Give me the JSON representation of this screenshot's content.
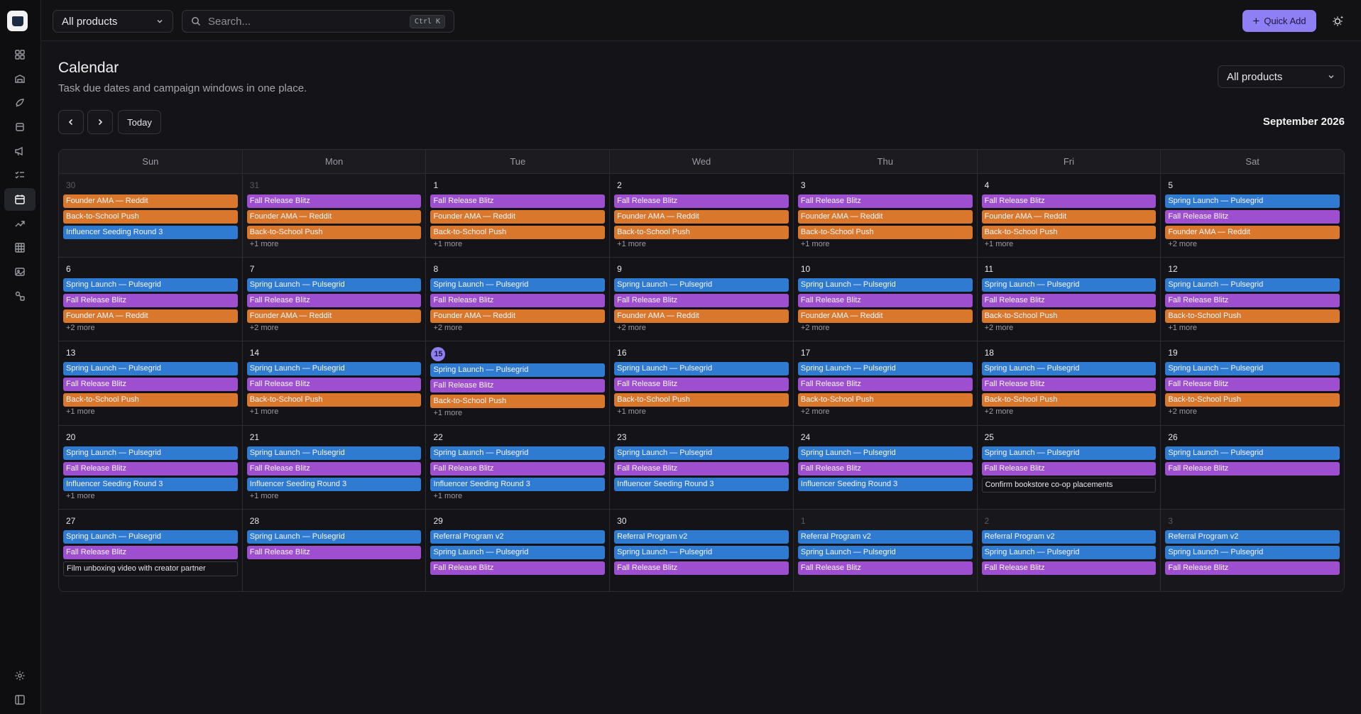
{
  "app": {
    "colors": {
      "accent": "#8f7ff5",
      "orange": "#d9782d",
      "purple": "#9d4fcf",
      "blue": "#2f7bd1"
    }
  },
  "sidebar": {
    "items": [
      {
        "icon": "dashboard-icon"
      },
      {
        "icon": "inventory-icon"
      },
      {
        "icon": "campaign-icon"
      },
      {
        "icon": "package-icon"
      },
      {
        "icon": "megaphone-icon"
      },
      {
        "icon": "checklist-icon"
      },
      {
        "icon": "calendar-icon",
        "active": true
      },
      {
        "icon": "trending-icon"
      },
      {
        "icon": "grid-icon"
      },
      {
        "icon": "image-icon"
      },
      {
        "icon": "shapes-icon"
      }
    ],
    "bottom": [
      {
        "icon": "gear-icon"
      },
      {
        "icon": "sidebar-toggle-icon"
      }
    ]
  },
  "topbar": {
    "product_select": "All products",
    "search_placeholder": "Search...",
    "search_shortcut": "Ctrl K",
    "quick_add_label": "Quick Add"
  },
  "page": {
    "title": "Calendar",
    "subtitle": "Task due dates and campaign windows in one place.",
    "product_filter": "All products",
    "today_label": "Today",
    "month_label": "September 2026"
  },
  "calendar": {
    "weekdays": [
      "Sun",
      "Mon",
      "Tue",
      "Wed",
      "Thu",
      "Fri",
      "Sat"
    ],
    "weeks": [
      [
        {
          "day": "30",
          "other": true,
          "events": [
            {
              "t": "Founder AMA — Reddit",
              "c": "orange"
            },
            {
              "t": "Back-to-School Push",
              "c": "orange"
            },
            {
              "t": "Influencer Seeding Round 3",
              "c": "blue"
            }
          ],
          "more": ""
        },
        {
          "day": "31",
          "other": true,
          "events": [
            {
              "t": "Fall Release Blitz",
              "c": "purple"
            },
            {
              "t": "Founder AMA — Reddit",
              "c": "orange"
            },
            {
              "t": "Back-to-School Push",
              "c": "orange"
            }
          ],
          "more": "+1 more"
        },
        {
          "day": "1",
          "events": [
            {
              "t": "Fall Release Blitz",
              "c": "purple"
            },
            {
              "t": "Founder AMA — Reddit",
              "c": "orange"
            },
            {
              "t": "Back-to-School Push",
              "c": "orange"
            }
          ],
          "more": "+1 more"
        },
        {
          "day": "2",
          "events": [
            {
              "t": "Fall Release Blitz",
              "c": "purple"
            },
            {
              "t": "Founder AMA — Reddit",
              "c": "orange"
            },
            {
              "t": "Back-to-School Push",
              "c": "orange"
            }
          ],
          "more": "+1 more"
        },
        {
          "day": "3",
          "events": [
            {
              "t": "Fall Release Blitz",
              "c": "purple"
            },
            {
              "t": "Founder AMA — Reddit",
              "c": "orange"
            },
            {
              "t": "Back-to-School Push",
              "c": "orange"
            }
          ],
          "more": "+1 more"
        },
        {
          "day": "4",
          "events": [
            {
              "t": "Fall Release Blitz",
              "c": "purple"
            },
            {
              "t": "Founder AMA — Reddit",
              "c": "orange"
            },
            {
              "t": "Back-to-School Push",
              "c": "orange"
            }
          ],
          "more": "+1 more"
        },
        {
          "day": "5",
          "events": [
            {
              "t": "Spring Launch — Pulsegrid",
              "c": "blue"
            },
            {
              "t": "Fall Release Blitz",
              "c": "purple"
            },
            {
              "t": "Founder AMA — Reddit",
              "c": "orange"
            }
          ],
          "more": "+2 more"
        }
      ],
      [
        {
          "day": "6",
          "events": [
            {
              "t": "Spring Launch — Pulsegrid",
              "c": "blue"
            },
            {
              "t": "Fall Release Blitz",
              "c": "purple"
            },
            {
              "t": "Founder AMA — Reddit",
              "c": "orange"
            }
          ],
          "more": "+2 more"
        },
        {
          "day": "7",
          "events": [
            {
              "t": "Spring Launch — Pulsegrid",
              "c": "blue"
            },
            {
              "t": "Fall Release Blitz",
              "c": "purple"
            },
            {
              "t": "Founder AMA — Reddit",
              "c": "orange"
            }
          ],
          "more": "+2 more"
        },
        {
          "day": "8",
          "events": [
            {
              "t": "Spring Launch — Pulsegrid",
              "c": "blue"
            },
            {
              "t": "Fall Release Blitz",
              "c": "purple"
            },
            {
              "t": "Founder AMA — Reddit",
              "c": "orange"
            }
          ],
          "more": "+2 more"
        },
        {
          "day": "9",
          "events": [
            {
              "t": "Spring Launch — Pulsegrid",
              "c": "blue"
            },
            {
              "t": "Fall Release Blitz",
              "c": "purple"
            },
            {
              "t": "Founder AMA — Reddit",
              "c": "orange"
            }
          ],
          "more": "+2 more"
        },
        {
          "day": "10",
          "events": [
            {
              "t": "Spring Launch — Pulsegrid",
              "c": "blue"
            },
            {
              "t": "Fall Release Blitz",
              "c": "purple"
            },
            {
              "t": "Founder AMA — Reddit",
              "c": "orange"
            }
          ],
          "more": "+2 more"
        },
        {
          "day": "11",
          "events": [
            {
              "t": "Spring Launch — Pulsegrid",
              "c": "blue"
            },
            {
              "t": "Fall Release Blitz",
              "c": "purple"
            },
            {
              "t": "Back-to-School Push",
              "c": "orange"
            }
          ],
          "more": "+2 more"
        },
        {
          "day": "12",
          "events": [
            {
              "t": "Spring Launch — Pulsegrid",
              "c": "blue"
            },
            {
              "t": "Fall Release Blitz",
              "c": "purple"
            },
            {
              "t": "Back-to-School Push",
              "c": "orange"
            }
          ],
          "more": "+1 more"
        }
      ],
      [
        {
          "day": "13",
          "events": [
            {
              "t": "Spring Launch — Pulsegrid",
              "c": "blue"
            },
            {
              "t": "Fall Release Blitz",
              "c": "purple"
            },
            {
              "t": "Back-to-School Push",
              "c": "orange"
            }
          ],
          "more": "+1 more"
        },
        {
          "day": "14",
          "events": [
            {
              "t": "Spring Launch — Pulsegrid",
              "c": "blue"
            },
            {
              "t": "Fall Release Blitz",
              "c": "purple"
            },
            {
              "t": "Back-to-School Push",
              "c": "orange"
            }
          ],
          "more": "+1 more"
        },
        {
          "day": "15",
          "today": true,
          "events": [
            {
              "t": "Spring Launch — Pulsegrid",
              "c": "blue"
            },
            {
              "t": "Fall Release Blitz",
              "c": "purple"
            },
            {
              "t": "Back-to-School Push",
              "c": "orange"
            }
          ],
          "more": "+1 more"
        },
        {
          "day": "16",
          "events": [
            {
              "t": "Spring Launch — Pulsegrid",
              "c": "blue"
            },
            {
              "t": "Fall Release Blitz",
              "c": "purple"
            },
            {
              "t": "Back-to-School Push",
              "c": "orange"
            }
          ],
          "more": "+1 more"
        },
        {
          "day": "17",
          "events": [
            {
              "t": "Spring Launch — Pulsegrid",
              "c": "blue"
            },
            {
              "t": "Fall Release Blitz",
              "c": "purple"
            },
            {
              "t": "Back-to-School Push",
              "c": "orange"
            }
          ],
          "more": "+2 more"
        },
        {
          "day": "18",
          "events": [
            {
              "t": "Spring Launch — Pulsegrid",
              "c": "blue"
            },
            {
              "t": "Fall Release Blitz",
              "c": "purple"
            },
            {
              "t": "Back-to-School Push",
              "c": "orange"
            }
          ],
          "more": "+2 more"
        },
        {
          "day": "19",
          "events": [
            {
              "t": "Spring Launch — Pulsegrid",
              "c": "blue"
            },
            {
              "t": "Fall Release Blitz",
              "c": "purple"
            },
            {
              "t": "Back-to-School Push",
              "c": "orange"
            }
          ],
          "more": "+2 more"
        }
      ],
      [
        {
          "day": "20",
          "events": [
            {
              "t": "Spring Launch — Pulsegrid",
              "c": "blue"
            },
            {
              "t": "Fall Release Blitz",
              "c": "purple"
            },
            {
              "t": "Influencer Seeding Round 3",
              "c": "blue"
            }
          ],
          "more": "+1 more"
        },
        {
          "day": "21",
          "events": [
            {
              "t": "Spring Launch — Pulsegrid",
              "c": "blue"
            },
            {
              "t": "Fall Release Blitz",
              "c": "purple"
            },
            {
              "t": "Influencer Seeding Round 3",
              "c": "blue"
            }
          ],
          "more": "+1 more"
        },
        {
          "day": "22",
          "events": [
            {
              "t": "Spring Launch — Pulsegrid",
              "c": "blue"
            },
            {
              "t": "Fall Release Blitz",
              "c": "purple"
            },
            {
              "t": "Influencer Seeding Round 3",
              "c": "blue"
            }
          ],
          "more": "+1 more"
        },
        {
          "day": "23",
          "events": [
            {
              "t": "Spring Launch — Pulsegrid",
              "c": "blue"
            },
            {
              "t": "Fall Release Blitz",
              "c": "purple"
            },
            {
              "t": "Influencer Seeding Round 3",
              "c": "blue"
            }
          ],
          "more": ""
        },
        {
          "day": "24",
          "events": [
            {
              "t": "Spring Launch — Pulsegrid",
              "c": "blue"
            },
            {
              "t": "Fall Release Blitz",
              "c": "purple"
            },
            {
              "t": "Influencer Seeding Round 3",
              "c": "blue"
            }
          ],
          "more": ""
        },
        {
          "day": "25",
          "events": [
            {
              "t": "Spring Launch — Pulsegrid",
              "c": "blue"
            },
            {
              "t": "Fall Release Blitz",
              "c": "purple"
            },
            {
              "t": "Confirm bookstore co-op placements",
              "c": "task"
            }
          ],
          "more": ""
        },
        {
          "day": "26",
          "events": [
            {
              "t": "Spring Launch — Pulsegrid",
              "c": "blue"
            },
            {
              "t": "Fall Release Blitz",
              "c": "purple"
            }
          ],
          "more": ""
        }
      ],
      [
        {
          "day": "27",
          "events": [
            {
              "t": "Spring Launch — Pulsegrid",
              "c": "blue"
            },
            {
              "t": "Fall Release Blitz",
              "c": "purple"
            },
            {
              "t": "Film unboxing video with creator partner",
              "c": "task"
            }
          ],
          "more": ""
        },
        {
          "day": "28",
          "events": [
            {
              "t": "Spring Launch — Pulsegrid",
              "c": "blue"
            },
            {
              "t": "Fall Release Blitz",
              "c": "purple"
            }
          ],
          "more": ""
        },
        {
          "day": "29",
          "events": [
            {
              "t": "Referral Program v2",
              "c": "blue"
            },
            {
              "t": "Spring Launch — Pulsegrid",
              "c": "blue"
            },
            {
              "t": "Fall Release Blitz",
              "c": "purple"
            }
          ],
          "more": ""
        },
        {
          "day": "30",
          "events": [
            {
              "t": "Referral Program v2",
              "c": "blue"
            },
            {
              "t": "Spring Launch — Pulsegrid",
              "c": "blue"
            },
            {
              "t": "Fall Release Blitz",
              "c": "purple"
            }
          ],
          "more": ""
        },
        {
          "day": "1",
          "other": true,
          "events": [
            {
              "t": "Referral Program v2",
              "c": "blue"
            },
            {
              "t": "Spring Launch — Pulsegrid",
              "c": "blue"
            },
            {
              "t": "Fall Release Blitz",
              "c": "purple"
            }
          ],
          "more": ""
        },
        {
          "day": "2",
          "other": true,
          "events": [
            {
              "t": "Referral Program v2",
              "c": "blue"
            },
            {
              "t": "Spring Launch — Pulsegrid",
              "c": "blue"
            },
            {
              "t": "Fall Release Blitz",
              "c": "purple"
            }
          ],
          "more": ""
        },
        {
          "day": "3",
          "other": true,
          "events": [
            {
              "t": "Referral Program v2",
              "c": "blue"
            },
            {
              "t": "Spring Launch — Pulsegrid",
              "c": "blue"
            },
            {
              "t": "Fall Release Blitz",
              "c": "purple"
            }
          ],
          "more": ""
        }
      ]
    ]
  }
}
